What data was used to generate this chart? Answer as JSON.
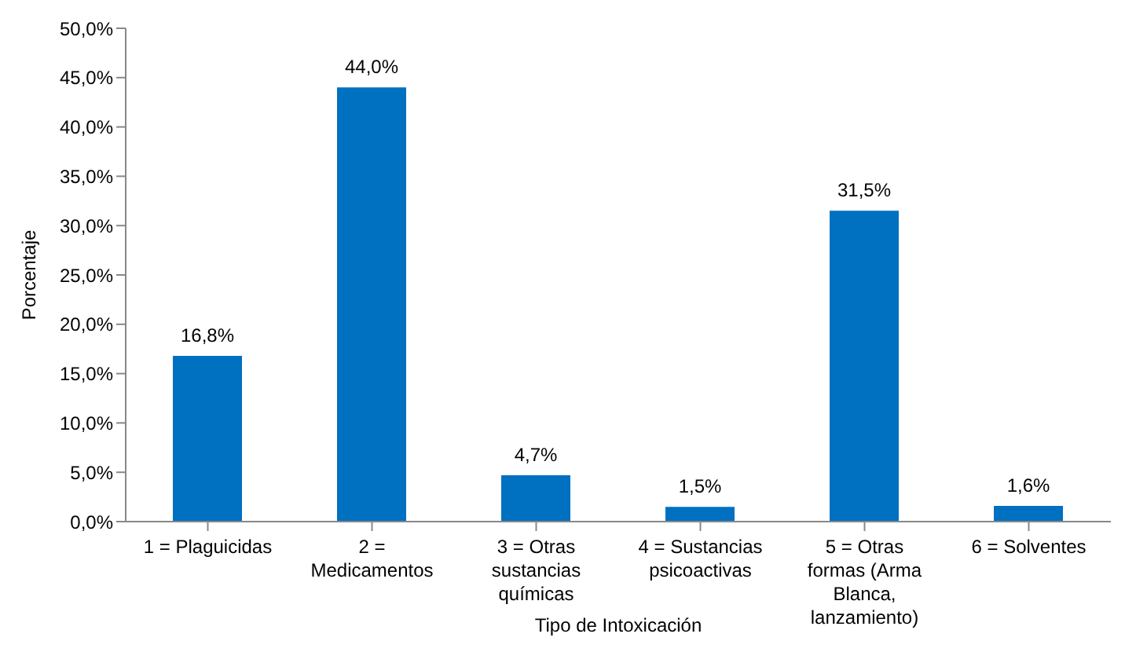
{
  "chart_data": {
    "type": "bar",
    "xlabel": "Tipo de Intoxicación",
    "ylabel": "Porcentaje",
    "categories": [
      "1 = Plaguicidas",
      "2 = Medicamentos",
      "3 = Otras sustancias químicas",
      "4 = Sustancias psicoactivas",
      "5 = Otras formas (Arma Blanca, lanzamiento)",
      "6 = Solventes"
    ],
    "values": [
      16.8,
      44.0,
      4.7,
      1.5,
      31.5,
      1.6
    ],
    "value_labels": [
      "16,8%",
      "44,0%",
      "4,7%",
      "1,5%",
      "31,5%",
      "1,6%"
    ],
    "color": "#0070c0",
    "ylim": [
      0,
      50
    ],
    "yticks": [
      {
        "value": 0,
        "label": "0,0%"
      },
      {
        "value": 5,
        "label": "5,0%"
      },
      {
        "value": 10,
        "label": "10,0%"
      },
      {
        "value": 15,
        "label": "15,0%"
      },
      {
        "value": 20,
        "label": "20,0%"
      },
      {
        "value": 25,
        "label": "25,0%"
      },
      {
        "value": 30,
        "label": "30,0%"
      },
      {
        "value": 35,
        "label": "35,0%"
      },
      {
        "value": 40,
        "label": "40,0%"
      },
      {
        "value": 45,
        "label": "45,0%"
      },
      {
        "value": 50,
        "label": "50,0%"
      }
    ],
    "grid": false
  }
}
